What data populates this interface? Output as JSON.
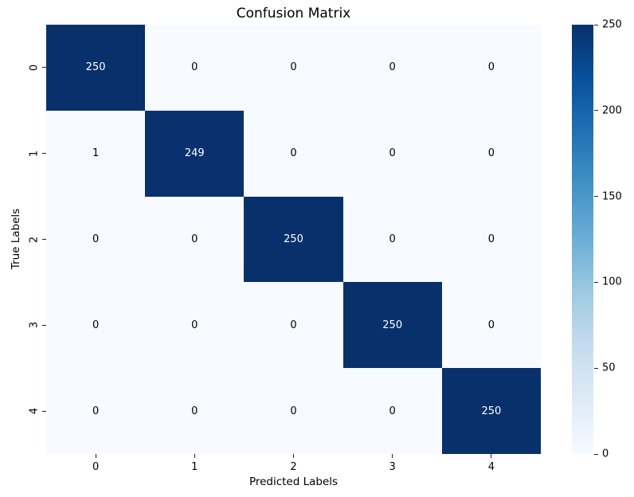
{
  "figure": {
    "background_color": "#ffffff"
  },
  "chart_data": {
    "type": "heatmap",
    "title": "Confusion Matrix",
    "xlabel": "Predicted Labels",
    "ylabel": "True Labels",
    "x_tick_labels": [
      "0",
      "1",
      "2",
      "3",
      "4"
    ],
    "y_tick_labels": [
      "0",
      "1",
      "2",
      "3",
      "4"
    ],
    "matrix": [
      [
        250,
        0,
        0,
        0,
        0
      ],
      [
        1,
        249,
        0,
        0,
        0
      ],
      [
        0,
        0,
        250,
        0,
        0
      ],
      [
        0,
        0,
        0,
        250,
        0
      ],
      [
        0,
        0,
        0,
        0,
        250
      ]
    ],
    "vmin": 0,
    "vmax": 250,
    "colorbar_tick_values": [
      0,
      50,
      100,
      150,
      200,
      250
    ],
    "colorbar_tick_labels": [
      "0",
      "50",
      "100",
      "150",
      "200",
      "250"
    ],
    "colormap_name": "Blues",
    "colormap_stops": [
      "#f7fbff",
      "#deebf7",
      "#c6dbef",
      "#9ecae1",
      "#6baed6",
      "#4292c6",
      "#2171b5",
      "#08519c",
      "#08306b"
    ],
    "annotation_color_on_dark": "#ffffff",
    "annotation_color_on_light": "#000000",
    "grid": false,
    "legend_position": "right-colorbar"
  }
}
